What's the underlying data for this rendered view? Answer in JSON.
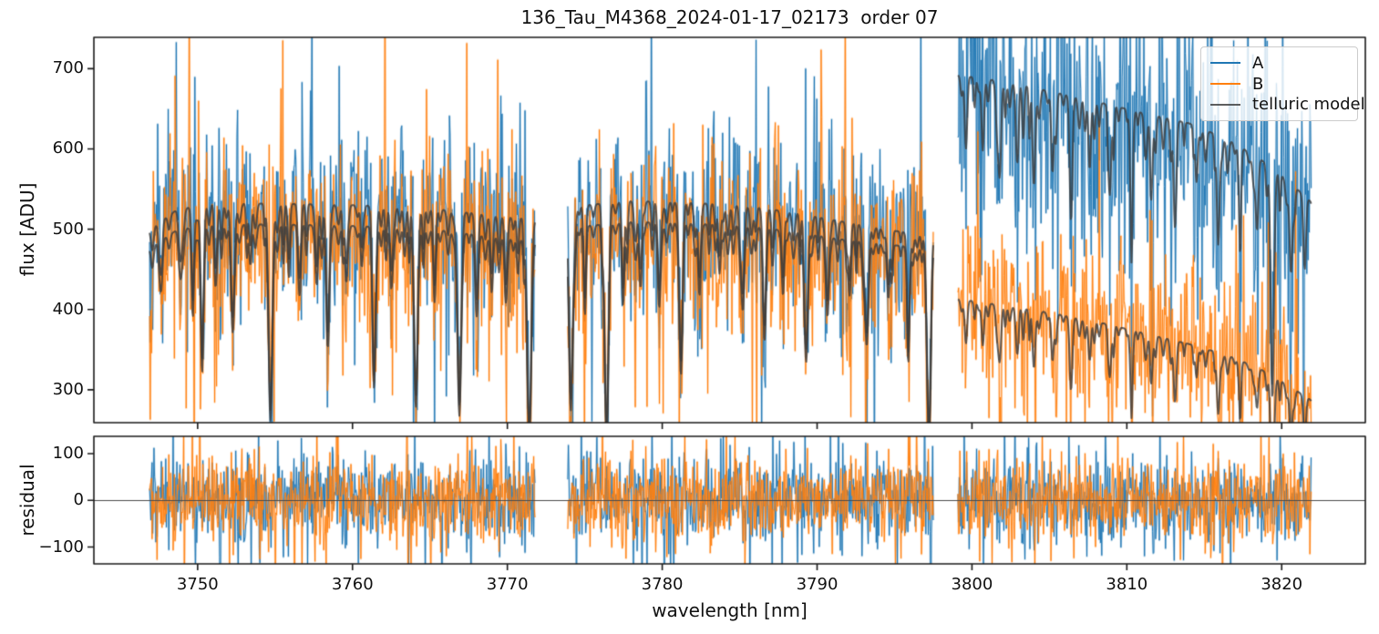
{
  "chart_data": {
    "type": "line",
    "title": "136_Tau_M4368_2024-01-17_02173  order 07",
    "xlabel": "wavelength [nm]",
    "xlim": [
      3743.3,
      3825.4
    ],
    "xticks": [
      3750,
      3760,
      3770,
      3780,
      3790,
      3800,
      3810,
      3820
    ],
    "xticklabels": [
      "3750",
      "3760",
      "3770",
      "3780",
      "3790",
      "3800",
      "3810",
      "3820"
    ],
    "grid": false,
    "panels": [
      {
        "name": "flux",
        "ylabel": "flux [ADU]",
        "ylim": [
          259,
          739
        ],
        "yticks": [
          300,
          400,
          500,
          600,
          700
        ],
        "yticklabels": [
          "300",
          "400",
          "500",
          "600",
          "700"
        ]
      },
      {
        "name": "residual",
        "ylabel": "residual",
        "ylim": [
          -136,
          137
        ],
        "yticks": [
          -100,
          0,
          100
        ],
        "yticklabels": [
          "−100",
          "0",
          "100"
        ],
        "zero_line": true,
        "zero_line_color": "#4a4a4a"
      }
    ],
    "legend": {
      "position": "upper right",
      "items": [
        {
          "label": "A",
          "color": "#1f77b4",
          "alpha": 1
        },
        {
          "label": "B",
          "color": "#ff7f0e",
          "alpha": 1
        },
        {
          "label": "telluric model",
          "color": "#3c3c3c",
          "alpha": 0.82
        }
      ]
    },
    "segments": [
      {
        "range": [
          3746.9,
          3771.8
        ]
      },
      {
        "range": [
          3773.9,
          3797.5
        ]
      },
      {
        "range": [
          3799.1,
          3821.9
        ]
      }
    ],
    "series": [
      {
        "name": "A",
        "color": "#1f77b4",
        "role": "data",
        "noise_sigma_by_segment": [
          52,
          52,
          80
        ],
        "continuum": [
          [
            3746.9,
            500
          ],
          [
            3748.5,
            522
          ],
          [
            3750.2,
            531
          ],
          [
            3754,
            532
          ],
          [
            3758,
            531
          ],
          [
            3762,
            529
          ],
          [
            3766,
            524
          ],
          [
            3769,
            517
          ],
          [
            3771.8,
            512
          ],
          [
            3773.9,
            528
          ],
          [
            3778,
            535
          ],
          [
            3782,
            533
          ],
          [
            3786,
            528
          ],
          [
            3789,
            519
          ],
          [
            3792,
            508
          ],
          [
            3795,
            498
          ],
          [
            3797.5,
            491
          ],
          [
            3799.1,
            692
          ],
          [
            3802,
            684
          ],
          [
            3805,
            672
          ],
          [
            3808,
            659
          ],
          [
            3811,
            645
          ],
          [
            3814,
            632
          ],
          [
            3816.5,
            612
          ],
          [
            3818.5,
            589
          ],
          [
            3820.3,
            562
          ],
          [
            3821.9,
            534
          ]
        ]
      },
      {
        "name": "B",
        "color": "#ff7f0e",
        "role": "data",
        "noise_sigma_by_segment": [
          52,
          52,
          50
        ],
        "continuum": [
          [
            3746.9,
            477
          ],
          [
            3748.5,
            497
          ],
          [
            3750.2,
            505
          ],
          [
            3754,
            506
          ],
          [
            3758,
            505
          ],
          [
            3762,
            503
          ],
          [
            3766,
            498
          ],
          [
            3769,
            490
          ],
          [
            3771.8,
            484
          ],
          [
            3773.9,
            502
          ],
          [
            3778,
            509
          ],
          [
            3782,
            507
          ],
          [
            3786,
            503
          ],
          [
            3789,
            495
          ],
          [
            3792,
            486
          ],
          [
            3795,
            480
          ],
          [
            3797.5,
            475
          ],
          [
            3799.1,
            413
          ],
          [
            3802,
            405
          ],
          [
            3805,
            396
          ],
          [
            3808,
            385
          ],
          [
            3811,
            371
          ],
          [
            3814,
            357
          ],
          [
            3816.5,
            343
          ],
          [
            3818.5,
            327
          ],
          [
            3820.3,
            307
          ],
          [
            3821.9,
            287
          ]
        ]
      },
      {
        "name": "telluric model",
        "color": "#3c3c3c",
        "alpha": 0.82,
        "role": "model",
        "linewidth": 2
      }
    ],
    "telluric_lines": [
      [
        3747.6,
        0.12,
        0.1
      ],
      [
        3748.9,
        0.1,
        0.08
      ],
      [
        3749.7,
        0.16,
        0.09
      ],
      [
        3750.3,
        0.3,
        0.1
      ],
      [
        3751.2,
        0.12,
        0.08
      ],
      [
        3752.3,
        0.22,
        0.1
      ],
      [
        3753.4,
        0.1,
        0.08
      ],
      [
        3754.7,
        0.48,
        0.12
      ],
      [
        3755.9,
        0.1,
        0.07
      ],
      [
        3756.6,
        0.16,
        0.08
      ],
      [
        3757.7,
        0.12,
        0.08
      ],
      [
        3758.4,
        0.3,
        0.1
      ],
      [
        3759.6,
        0.14,
        0.08
      ],
      [
        3760.6,
        0.1,
        0.07
      ],
      [
        3761.4,
        0.36,
        0.11
      ],
      [
        3762.5,
        0.14,
        0.08
      ],
      [
        3764.1,
        0.42,
        0.12
      ],
      [
        3765.3,
        0.16,
        0.08
      ],
      [
        3766.9,
        0.46,
        0.12
      ],
      [
        3768.0,
        0.18,
        0.09
      ],
      [
        3769.0,
        0.12,
        0.08
      ],
      [
        3769.9,
        0.16,
        0.08
      ],
      [
        3771.4,
        0.48,
        0.13
      ],
      [
        3774.1,
        0.42,
        0.12
      ],
      [
        3775.0,
        0.14,
        0.08
      ],
      [
        3776.4,
        0.52,
        0.12
      ],
      [
        3777.5,
        0.12,
        0.08
      ],
      [
        3778.6,
        0.16,
        0.09
      ],
      [
        3779.8,
        0.2,
        0.09
      ],
      [
        3781.2,
        0.34,
        0.11
      ],
      [
        3782.4,
        0.16,
        0.08
      ],
      [
        3783.7,
        0.12,
        0.08
      ],
      [
        3785.2,
        0.2,
        0.09
      ],
      [
        3786.6,
        0.26,
        0.1
      ],
      [
        3787.8,
        0.16,
        0.08
      ],
      [
        3789.3,
        0.32,
        0.11
      ],
      [
        3790.7,
        0.16,
        0.08
      ],
      [
        3792.1,
        0.14,
        0.08
      ],
      [
        3793.2,
        0.26,
        0.1
      ],
      [
        3794.6,
        0.14,
        0.08
      ],
      [
        3795.9,
        0.22,
        0.09
      ],
      [
        3797.2,
        0.45,
        0.12
      ],
      [
        3799.6,
        0.1,
        0.08
      ],
      [
        3800.7,
        0.13,
        0.08
      ],
      [
        3801.8,
        0.16,
        0.09
      ],
      [
        3802.9,
        0.13,
        0.08
      ],
      [
        3804.0,
        0.18,
        0.09
      ],
      [
        3805.2,
        0.15,
        0.08
      ],
      [
        3806.4,
        0.2,
        0.09
      ],
      [
        3807.6,
        0.13,
        0.08
      ],
      [
        3808.9,
        0.17,
        0.09
      ],
      [
        3810.3,
        0.2,
        0.09
      ],
      [
        3811.6,
        0.13,
        0.08
      ],
      [
        3813.1,
        0.18,
        0.09
      ],
      [
        3814.5,
        0.11,
        0.08
      ],
      [
        3815.9,
        0.22,
        0.09
      ],
      [
        3817.3,
        0.15,
        0.08
      ],
      [
        3818.4,
        0.13,
        0.08
      ],
      [
        3819.4,
        0.42,
        0.11
      ],
      [
        3820.6,
        0.2,
        0.09
      ],
      [
        3821.5,
        0.15,
        0.08
      ]
    ],
    "telluric_ripples": {
      "spacing": 0.45,
      "depth_min": 0.02,
      "depth_max": 0.1,
      "width_min": 0.045,
      "width_max": 0.095
    },
    "residual_sigma": 45,
    "sample_step": 0.04
  }
}
